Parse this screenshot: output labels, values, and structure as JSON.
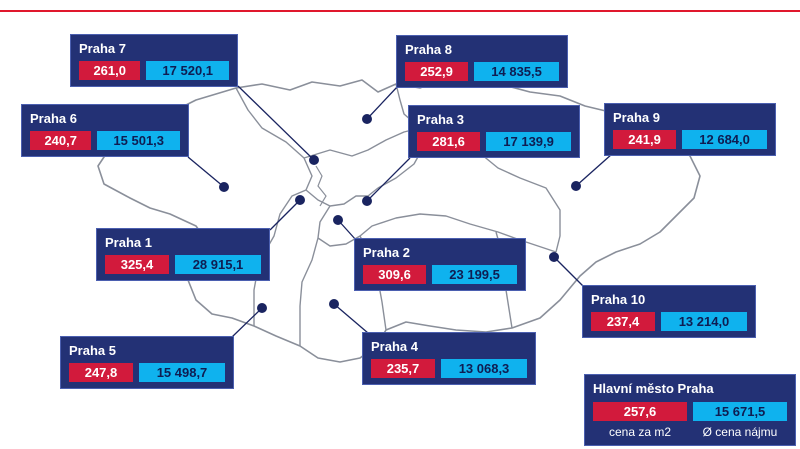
{
  "colors": {
    "card_bg": "#233175",
    "price_bg": "#d21a3c",
    "rent_bg": "#0fb2ee",
    "leader": "#1a2460",
    "boundary": "#8a8f9a",
    "accent_line": "#e0182d"
  },
  "districts": [
    {
      "id": "praha-7",
      "name": "Praha 7",
      "price": "261,0",
      "rent": "17 520,1"
    },
    {
      "id": "praha-8",
      "name": "Praha 8",
      "price": "252,9",
      "rent": "14 835,5"
    },
    {
      "id": "praha-6",
      "name": "Praha 6",
      "price": "240,7",
      "rent": "15 501,3"
    },
    {
      "id": "praha-3",
      "name": "Praha 3",
      "price": "281,6",
      "rent": "17 139,9"
    },
    {
      "id": "praha-9",
      "name": "Praha 9",
      "price": "241,9",
      "rent": "12 684,0"
    },
    {
      "id": "praha-1",
      "name": "Praha 1",
      "price": "325,4",
      "rent": "28 915,1"
    },
    {
      "id": "praha-2",
      "name": "Praha 2",
      "price": "309,6",
      "rent": "23 199,5"
    },
    {
      "id": "praha-10",
      "name": "Praha 10",
      "price": "237,4",
      "rent": "13 214,0"
    },
    {
      "id": "praha-5",
      "name": "Praha 5",
      "price": "247,8",
      "rent": "15 498,7"
    },
    {
      "id": "praha-4",
      "name": "Praha 4",
      "price": "235,7",
      "rent": "13 068,3"
    }
  ],
  "summary": {
    "name": "Hlavní město Praha",
    "price": "257,6",
    "rent": "15 671,5",
    "price_label": "cena za m2",
    "rent_label": "Ø cena nájmu"
  }
}
